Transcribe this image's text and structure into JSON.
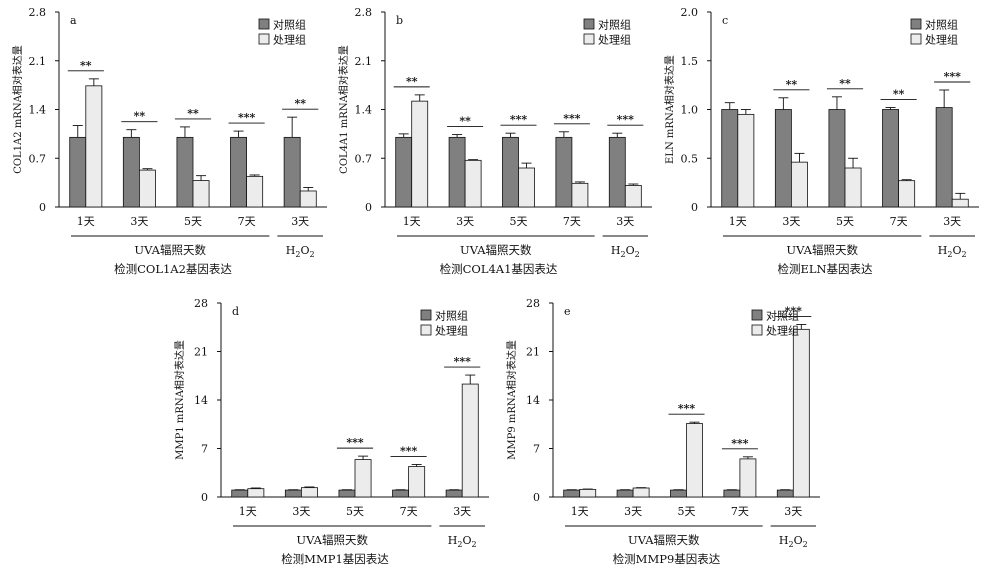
{
  "colors": {
    "control": "#808080",
    "treated": "#ececec",
    "axis": "#111111"
  },
  "chart_data": [
    {
      "type": "bar",
      "panel": "a",
      "ylabel": "COL1A2 mRNA相对表达量",
      "ylim": [
        0,
        2.8
      ],
      "yticks": [
        "0",
        "0.7",
        "1.4",
        "2.1",
        "2.8"
      ],
      "categories": [
        "1天",
        "3天",
        "5天",
        "7天",
        "3天"
      ],
      "legend": [
        "对照组",
        "处理组"
      ],
      "series": [
        {
          "name": "对照组",
          "values": [
            1.0,
            1.0,
            1.0,
            1.0,
            1.0
          ],
          "errors": [
            0.17,
            0.11,
            0.15,
            0.09,
            0.29
          ]
        },
        {
          "name": "处理组",
          "values": [
            1.74,
            0.53,
            0.38,
            0.44,
            0.23
          ],
          "errors": [
            0.1,
            0.02,
            0.07,
            0.02,
            0.05
          ]
        }
      ],
      "significance": [
        "**",
        "**",
        "**",
        "***",
        "**"
      ],
      "group_label": "UVA辐照天数",
      "h2o2_label": "H2O2",
      "caption": "检测COL1A2基因表达"
    },
    {
      "type": "bar",
      "panel": "b",
      "ylabel": "COL4A1 mRNA相对表达量",
      "ylim": [
        0,
        2.8
      ],
      "yticks": [
        "0",
        "0.7",
        "1.4",
        "2.1",
        "2.8"
      ],
      "categories": [
        "1天",
        "3天",
        "5天",
        "7天",
        "3天"
      ],
      "legend": [
        "对照组",
        "处理组"
      ],
      "series": [
        {
          "name": "对照组",
          "values": [
            1.0,
            1.0,
            1.0,
            1.0,
            1.0
          ],
          "errors": [
            0.05,
            0.04,
            0.06,
            0.08,
            0.06
          ]
        },
        {
          "name": "处理组",
          "values": [
            1.52,
            0.67,
            0.56,
            0.34,
            0.31
          ],
          "errors": [
            0.09,
            0.01,
            0.07,
            0.02,
            0.02
          ]
        }
      ],
      "significance": [
        "**",
        "**",
        "***",
        "***",
        "***"
      ],
      "group_label": "UVA辐照天数",
      "h2o2_label": "H2O2",
      "caption": "检测COL4A1基因表达"
    },
    {
      "type": "bar",
      "panel": "c",
      "ylabel": "ELN mRNA相对表达量",
      "ylim": [
        0,
        2.0
      ],
      "yticks": [
        "0",
        "0.5",
        "1.0",
        "1.5",
        "2.0"
      ],
      "categories": [
        "1天",
        "3天",
        "5天",
        "7天",
        "3天"
      ],
      "legend": [
        "对照组",
        "处理组"
      ],
      "series": [
        {
          "name": "对照组",
          "values": [
            1.0,
            1.0,
            1.0,
            1.0,
            1.02
          ],
          "errors": [
            0.07,
            0.12,
            0.13,
            0.02,
            0.18
          ]
        },
        {
          "name": "处理组",
          "values": [
            0.95,
            0.46,
            0.4,
            0.27,
            0.08
          ],
          "errors": [
            0.05,
            0.09,
            0.1,
            0.01,
            0.06
          ]
        }
      ],
      "significance": [
        "",
        "**",
        "**",
        "**",
        "***"
      ],
      "group_label": "UVA辐照天数",
      "h2o2_label": "H2O2",
      "caption": "检测ELN基因表达"
    },
    {
      "type": "bar",
      "panel": "d",
      "ylabel": "MMP1 mRNA相对表达量",
      "ylim": [
        0,
        28
      ],
      "yticks": [
        "0",
        "7",
        "14",
        "21",
        "28"
      ],
      "categories": [
        "1天",
        "3天",
        "5天",
        "7天",
        "3天"
      ],
      "legend": [
        "对照组",
        "处理组"
      ],
      "series": [
        {
          "name": "对照组",
          "values": [
            1.0,
            1.0,
            1.0,
            1.0,
            1.0
          ],
          "errors": [
            0.05,
            0.05,
            0.05,
            0.05,
            0.05
          ]
        },
        {
          "name": "处理组",
          "values": [
            1.2,
            1.35,
            5.4,
            4.4,
            16.3
          ],
          "errors": [
            0.1,
            0.1,
            0.5,
            0.3,
            1.3
          ]
        }
      ],
      "significance": [
        "",
        "",
        "***",
        "***",
        "***"
      ],
      "group_label": "UVA辐照天数",
      "h2o2_label": "H2O2",
      "caption": "检测MMP1基因表达"
    },
    {
      "type": "bar",
      "panel": "e",
      "ylabel": "MMP9 mRNA相对表达量",
      "ylim": [
        0,
        28
      ],
      "yticks": [
        "0",
        "7",
        "14",
        "21",
        "28"
      ],
      "categories": [
        "1天",
        "3天",
        "5天",
        "7天",
        "3天"
      ],
      "legend": [
        "对照组",
        "处理组"
      ],
      "series": [
        {
          "name": "对照组",
          "values": [
            1.0,
            1.0,
            1.0,
            1.0,
            1.0
          ],
          "errors": [
            0.05,
            0.05,
            0.05,
            0.05,
            0.05
          ]
        },
        {
          "name": "处理组",
          "values": [
            1.1,
            1.3,
            10.6,
            5.5,
            24.2
          ],
          "errors": [
            0.05,
            0.05,
            0.2,
            0.3,
            0.7
          ]
        }
      ],
      "significance": [
        "",
        "",
        "***",
        "***",
        "***"
      ],
      "group_label": "UVA辐照天数",
      "h2o2_label": "H2O2",
      "caption": "检测MMP9基因表达"
    }
  ]
}
